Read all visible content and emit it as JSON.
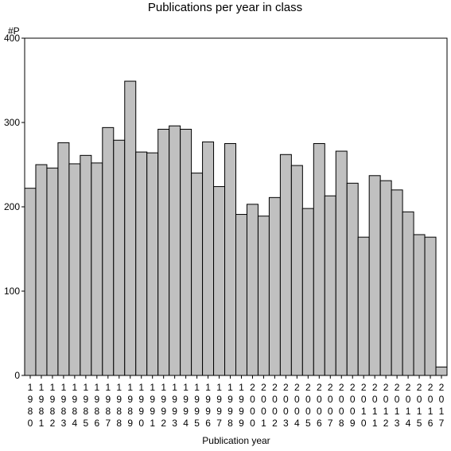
{
  "chart_data": {
    "type": "bar",
    "title": "Publications per year in class",
    "ylabel": "#P",
    "xlabel": "Publication year",
    "ylim": [
      0,
      400
    ],
    "yticks": [
      0,
      100,
      200,
      300,
      400
    ],
    "categories": [
      "1980",
      "1981",
      "1982",
      "1983",
      "1984",
      "1985",
      "1986",
      "1987",
      "1988",
      "1989",
      "1990",
      "1991",
      "1992",
      "1993",
      "1994",
      "1995",
      "1996",
      "1997",
      "1998",
      "1999",
      "2000",
      "2001",
      "2002",
      "2003",
      "2004",
      "2005",
      "2006",
      "2007",
      "2008",
      "2009",
      "2010",
      "2011",
      "2012",
      "2013",
      "2014",
      "2015",
      "2016",
      "2017"
    ],
    "values": [
      222,
      250,
      246,
      276,
      251,
      261,
      252,
      294,
      279,
      349,
      265,
      264,
      292,
      296,
      292,
      240,
      277,
      224,
      275,
      191,
      203,
      189,
      211,
      262,
      249,
      198,
      275,
      213,
      266,
      228,
      164,
      237,
      231,
      220,
      194,
      167,
      164,
      10
    ],
    "grid": false,
    "legend": "none",
    "colors": {
      "bar_fill": "#c0c0c0",
      "bar_stroke": "#000000"
    }
  }
}
